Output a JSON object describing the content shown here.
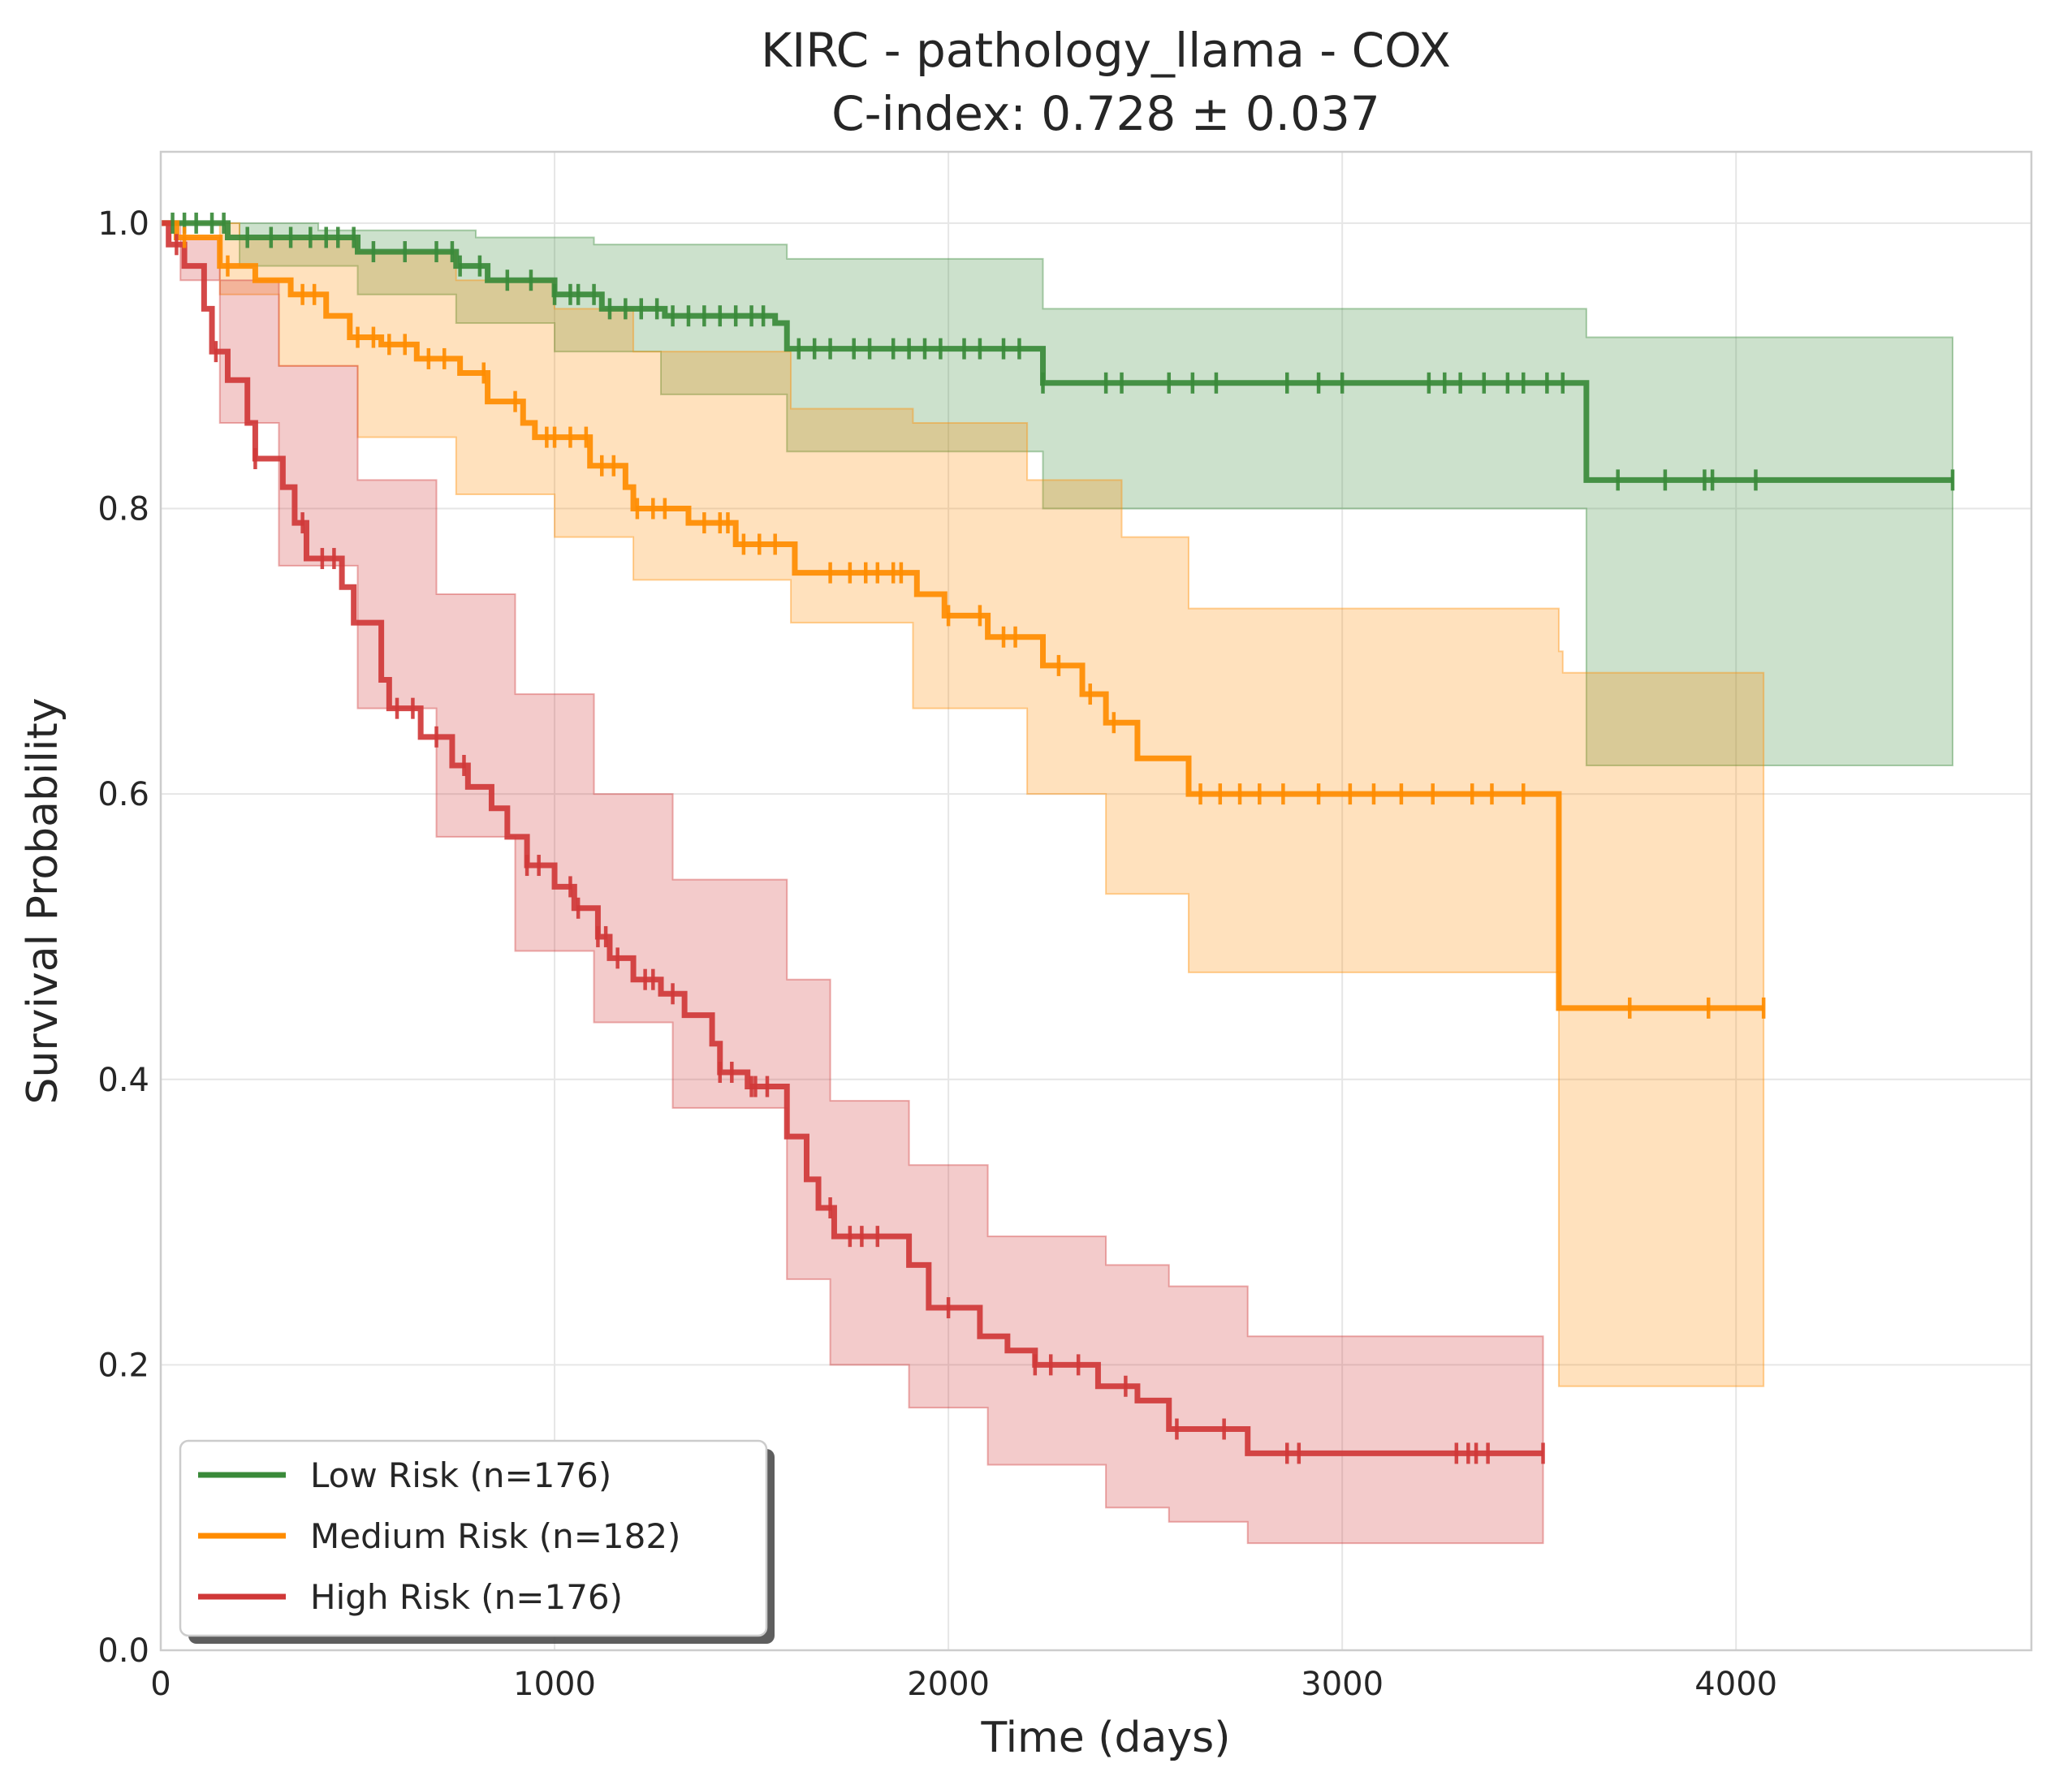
{
  "chart_data": {
    "type": "line",
    "subtype": "kaplan-meier",
    "title": "KIRC - pathology_llama - COX",
    "subtitle": "C-index: 0.728 ± 0.037",
    "xlabel": "Time (days)",
    "ylabel": "Survival Probability",
    "xlim": [
      0,
      4750
    ],
    "ylim": [
      0,
      1.05
    ],
    "xticks": [
      0,
      1000,
      2000,
      3000,
      4000
    ],
    "yticks": [
      0.0,
      0.2,
      0.4,
      0.6,
      0.8,
      1.0
    ],
    "xtick_labels": [
      "0",
      "1000",
      "2000",
      "3000",
      "4000"
    ],
    "ytick_labels": [
      "0.0",
      "0.2",
      "0.4",
      "0.6",
      "0.8",
      "1.0"
    ],
    "grid": true,
    "legend_position": "bottom-left",
    "series": [
      {
        "name": "Low Risk (n=176)",
        "color": "#3a8a3a",
        "steps": [
          [
            0,
            1.0
          ],
          [
            170,
            0.99
          ],
          [
            500,
            0.98
          ],
          [
            750,
            0.97
          ],
          [
            830,
            0.96
          ],
          [
            1000,
            0.95
          ],
          [
            1120,
            0.94
          ],
          [
            1280,
            0.935
          ],
          [
            1560,
            0.93
          ],
          [
            1590,
            0.912
          ],
          [
            2240,
            0.888
          ],
          [
            3620,
            0.82
          ],
          [
            4550,
            0.82
          ]
        ],
        "ci_upper": [
          [
            0,
            1.0
          ],
          [
            400,
            0.995
          ],
          [
            800,
            0.99
          ],
          [
            1100,
            0.985
          ],
          [
            1590,
            0.975
          ],
          [
            2240,
            0.94
          ],
          [
            3620,
            0.92
          ],
          [
            4550,
            0.92
          ]
        ],
        "ci_lower": [
          [
            0,
            1.0
          ],
          [
            200,
            0.97
          ],
          [
            500,
            0.95
          ],
          [
            750,
            0.93
          ],
          [
            1000,
            0.91
          ],
          [
            1270,
            0.88
          ],
          [
            1590,
            0.84
          ],
          [
            2240,
            0.8
          ],
          [
            3620,
            0.62
          ],
          [
            4550,
            0.62
          ]
        ],
        "censor_times": [
          30,
          60,
          90,
          130,
          160,
          220,
          280,
          330,
          380,
          420,
          450,
          490,
          540,
          620,
          700,
          740,
          760,
          810,
          880,
          940,
          1000,
          1040,
          1060,
          1100,
          1140,
          1180,
          1220,
          1260,
          1300,
          1340,
          1380,
          1420,
          1460,
          1500,
          1530,
          1620,
          1660,
          1700,
          1760,
          1800,
          1860,
          1900,
          1940,
          1980,
          2040,
          2080,
          2140,
          2180,
          2240,
          2400,
          2440,
          2560,
          2620,
          2680,
          2860,
          2940,
          3000,
          3220,
          3260,
          3300,
          3360,
          3420,
          3460,
          3520,
          3560,
          3700,
          3820,
          3920,
          3940,
          4050,
          4550
        ]
      },
      {
        "name": "Medium Risk (n=182)",
        "color": "#ff8c00",
        "steps": [
          [
            0,
            1.0
          ],
          [
            40,
            0.99
          ],
          [
            150,
            0.97
          ],
          [
            240,
            0.96
          ],
          [
            330,
            0.95
          ],
          [
            420,
            0.935
          ],
          [
            480,
            0.92
          ],
          [
            560,
            0.915
          ],
          [
            650,
            0.905
          ],
          [
            760,
            0.895
          ],
          [
            830,
            0.875
          ],
          [
            920,
            0.86
          ],
          [
            950,
            0.85
          ],
          [
            1090,
            0.83
          ],
          [
            1180,
            0.815
          ],
          [
            1200,
            0.8
          ],
          [
            1340,
            0.79
          ],
          [
            1460,
            0.775
          ],
          [
            1610,
            0.755
          ],
          [
            1920,
            0.74
          ],
          [
            1990,
            0.725
          ],
          [
            2100,
            0.71
          ],
          [
            2240,
            0.69
          ],
          [
            2340,
            0.67
          ],
          [
            2400,
            0.65
          ],
          [
            2480,
            0.625
          ],
          [
            2610,
            0.6
          ],
          [
            3550,
            0.45
          ],
          [
            4070,
            0.45
          ]
        ],
        "ci_upper": [
          [
            0,
            1.0
          ],
          [
            200,
            0.99
          ],
          [
            500,
            0.98
          ],
          [
            750,
            0.96
          ],
          [
            1000,
            0.94
          ],
          [
            1200,
            0.91
          ],
          [
            1600,
            0.87
          ],
          [
            1910,
            0.86
          ],
          [
            2200,
            0.82
          ],
          [
            2440,
            0.78
          ],
          [
            2610,
            0.73
          ],
          [
            3550,
            0.7
          ],
          [
            3560,
            0.685
          ],
          [
            4070,
            0.685
          ]
        ],
        "ci_lower": [
          [
            0,
            1.0
          ],
          [
            150,
            0.95
          ],
          [
            300,
            0.9
          ],
          [
            500,
            0.85
          ],
          [
            750,
            0.81
          ],
          [
            1000,
            0.78
          ],
          [
            1200,
            0.75
          ],
          [
            1600,
            0.72
          ],
          [
            1910,
            0.66
          ],
          [
            2200,
            0.6
          ],
          [
            2400,
            0.53
          ],
          [
            2610,
            0.475
          ],
          [
            3550,
            0.185
          ],
          [
            4070,
            0.185
          ]
        ],
        "censor_times": [
          60,
          170,
          360,
          390,
          500,
          540,
          580,
          620,
          680,
          720,
          820,
          900,
          980,
          1000,
          1040,
          1080,
          1120,
          1150,
          1210,
          1250,
          1280,
          1380,
          1420,
          1440,
          1480,
          1520,
          1560,
          1700,
          1750,
          1790,
          1820,
          1860,
          1880,
          2000,
          2080,
          2140,
          2170,
          2280,
          2360,
          2420,
          2640,
          2690,
          2740,
          2790,
          2850,
          2940,
          3020,
          3080,
          3150,
          3230,
          3330,
          3380,
          3460,
          3730,
          3930,
          4070
        ]
      },
      {
        "name": "High Risk (n=176)",
        "color": "#d03838",
        "steps": [
          [
            0,
            1.0
          ],
          [
            20,
            0.985
          ],
          [
            60,
            0.97
          ],
          [
            110,
            0.94
          ],
          [
            130,
            0.91
          ],
          [
            170,
            0.89
          ],
          [
            220,
            0.86
          ],
          [
            240,
            0.835
          ],
          [
            310,
            0.815
          ],
          [
            340,
            0.79
          ],
          [
            370,
            0.765
          ],
          [
            460,
            0.745
          ],
          [
            490,
            0.72
          ],
          [
            560,
            0.68
          ],
          [
            580,
            0.66
          ],
          [
            660,
            0.64
          ],
          [
            740,
            0.62
          ],
          [
            780,
            0.605
          ],
          [
            840,
            0.59
          ],
          [
            880,
            0.57
          ],
          [
            930,
            0.55
          ],
          [
            1000,
            0.535
          ],
          [
            1050,
            0.52
          ],
          [
            1110,
            0.5
          ],
          [
            1140,
            0.485
          ],
          [
            1200,
            0.47
          ],
          [
            1270,
            0.46
          ],
          [
            1330,
            0.445
          ],
          [
            1400,
            0.425
          ],
          [
            1420,
            0.405
          ],
          [
            1490,
            0.395
          ],
          [
            1590,
            0.36
          ],
          [
            1640,
            0.33
          ],
          [
            1670,
            0.31
          ],
          [
            1710,
            0.29
          ],
          [
            1900,
            0.27
          ],
          [
            1950,
            0.24
          ],
          [
            2080,
            0.22
          ],
          [
            2150,
            0.21
          ],
          [
            2220,
            0.2
          ],
          [
            2380,
            0.185
          ],
          [
            2480,
            0.175
          ],
          [
            2560,
            0.155
          ],
          [
            2760,
            0.138
          ],
          [
            3510,
            0.138
          ]
        ],
        "ci_upper": [
          [
            0,
            1.0
          ],
          [
            50,
            0.99
          ],
          [
            150,
            0.96
          ],
          [
            300,
            0.9
          ],
          [
            500,
            0.82
          ],
          [
            700,
            0.74
          ],
          [
            900,
            0.67
          ],
          [
            1100,
            0.6
          ],
          [
            1300,
            0.54
          ],
          [
            1590,
            0.47
          ],
          [
            1700,
            0.385
          ],
          [
            1900,
            0.34
          ],
          [
            2100,
            0.29
          ],
          [
            2400,
            0.27
          ],
          [
            2560,
            0.255
          ],
          [
            2760,
            0.22
          ],
          [
            3510,
            0.22
          ]
        ],
        "ci_lower": [
          [
            0,
            1.0
          ],
          [
            50,
            0.96
          ],
          [
            150,
            0.86
          ],
          [
            300,
            0.76
          ],
          [
            500,
            0.66
          ],
          [
            700,
            0.57
          ],
          [
            900,
            0.49
          ],
          [
            1100,
            0.44
          ],
          [
            1300,
            0.38
          ],
          [
            1590,
            0.26
          ],
          [
            1700,
            0.2
          ],
          [
            1900,
            0.17
          ],
          [
            2100,
            0.13
          ],
          [
            2400,
            0.1
          ],
          [
            2560,
            0.09
          ],
          [
            2760,
            0.075
          ],
          [
            3510,
            0.075
          ]
        ],
        "censor_times": [
          40,
          140,
          240,
          360,
          410,
          440,
          600,
          640,
          700,
          770,
          930,
          960,
          1040,
          1060,
          1110,
          1130,
          1160,
          1230,
          1250,
          1300,
          1420,
          1450,
          1500,
          1510,
          1540,
          1700,
          1750,
          1780,
          1820,
          2000,
          2220,
          2260,
          2330,
          2450,
          2580,
          2700,
          2860,
          2890,
          3290,
          3320,
          3340,
          3370,
          3510
        ]
      }
    ]
  }
}
